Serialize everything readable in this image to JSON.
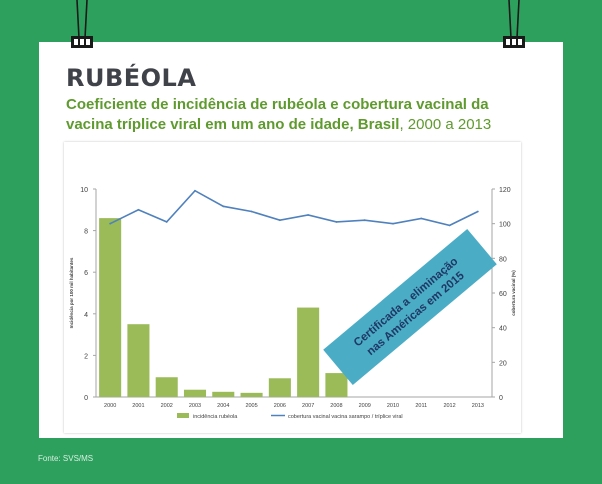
{
  "header": {
    "title": "RUBÉOLA",
    "subtitle_bold": "Coeficiente de incidência de rubéola  e cobertura vacinal da vacina tríplice viral em um ano de idade, Brasil",
    "subtitle_plain": ", 2000 a 2013"
  },
  "footer": {
    "source": "Fonte: SVS/MS"
  },
  "colors": {
    "background": "#2ea05e",
    "bar": "#9bbb59",
    "line": "#4f81bd",
    "banner": "#4bacc6",
    "title": "#40424a",
    "subtitle": "#5f9a2e"
  },
  "chart_data": {
    "type": "bar",
    "categories": [
      "2000",
      "2001",
      "2002",
      "2003",
      "2004",
      "2005",
      "2006",
      "2007",
      "2008",
      "2009",
      "2010",
      "2011",
      "2012",
      "2013"
    ],
    "series": [
      {
        "name": "incidência rubéola",
        "kind": "bar",
        "axis": "left",
        "values": [
          8.6,
          3.5,
          0.95,
          0.35,
          0.25,
          0.2,
          0.9,
          4.3,
          1.15,
          0,
          0,
          0,
          0,
          0
        ]
      },
      {
        "name": "cobertura vacinal vacina sarampo / tríplice viral",
        "kind": "line",
        "axis": "right",
        "values": [
          100,
          108,
          101,
          119,
          110,
          107,
          102,
          105,
          101,
          102,
          100,
          103,
          99,
          107
        ]
      }
    ],
    "ylabel": "Incidência  por 100 mil habitantes",
    "y2label": "cobertura vacinal  (%)",
    "ylim": [
      0,
      10
    ],
    "y2lim": [
      0,
      120
    ],
    "yticks": [
      "0",
      "2",
      "4",
      "6",
      "8",
      "10"
    ],
    "y2ticks": [
      "0",
      "20",
      "40",
      "60",
      "80",
      "100",
      "120"
    ],
    "legend_position": "bottom",
    "grid": false,
    "annotation": {
      "line1": "Certificada a eliminação",
      "line2": "nas Américas em 2015"
    }
  }
}
